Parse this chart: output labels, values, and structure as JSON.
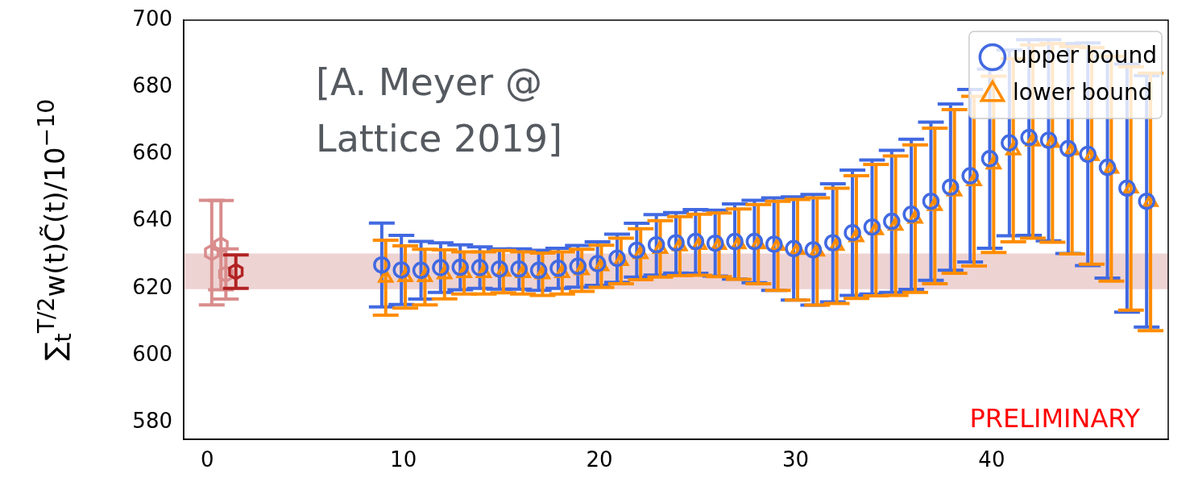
{
  "chart_data": {
    "type": "scatter",
    "ylabel": "∑$_{t}$$^{T/2}$w(t)C̃(t)/10$^{−10}$",
    "annotations": [
      "[A. Meyer @ Lattice 2019]",
      "PRELIMINARY"
    ],
    "xlim": [
      -1.2,
      49
    ],
    "xticks": [
      0,
      10,
      20,
      30,
      40
    ],
    "ylim": [
      575,
      700
    ],
    "yticks": [
      580,
      600,
      620,
      640,
      660,
      680,
      700
    ],
    "grid": false,
    "legend": "top right",
    "bands": [
      {
        "axis": "y",
        "from": 619.8,
        "to": 630.4,
        "color": "#eed3d3"
      }
    ],
    "series": [
      {
        "color": "#d98c8c",
        "x": [
          0.23,
          0.7,
          0.95
        ],
        "values": [
          630.7,
          632.9,
          624.3
        ],
        "errors": [
          15.6,
          13.3,
          7.5
        ]
      },
      {
        "color": "#b22222",
        "x": [
          1.46
        ],
        "values": [
          625
        ],
        "errors": [
          5
        ]
      },
      {
        "name": "upper bound",
        "color": "#4169e1",
        "marker": "circle",
        "x": [
          8.9,
          9.9,
          10.9,
          11.9,
          12.9,
          13.9,
          14.9,
          15.9,
          16.9,
          17.9,
          18.9,
          19.9,
          20.9,
          21.9,
          22.9,
          23.9,
          24.9,
          25.9,
          26.9,
          27.9,
          28.9,
          29.9,
          30.9,
          31.9,
          32.9,
          33.9,
          34.9,
          35.9,
          36.9,
          37.9,
          38.9,
          39.9,
          40.9,
          41.9,
          42.9,
          43.9,
          44.9,
          45.9,
          46.9,
          47.9
        ],
        "values": [
          627,
          625.5,
          625.4,
          626.2,
          626.3,
          626.2,
          625.8,
          625.8,
          625.4,
          626,
          626.6,
          627.4,
          629,
          631.4,
          633,
          633.6,
          634,
          633.5,
          634,
          634,
          633.2,
          631.9,
          631.5,
          633.6,
          636.6,
          638.3,
          640,
          642.1,
          646,
          650.2,
          653.6,
          658.7,
          663.4,
          665,
          664.2,
          661.7,
          660,
          656.1,
          649.9,
          646
        ],
        "errors": [
          12.5,
          10.3,
          8.6,
          7.4,
          6.7,
          6.2,
          6,
          6,
          6,
          6,
          6.2,
          6.5,
          7.2,
          8,
          9,
          9,
          9.5,
          9.8,
          11.2,
          12.3,
          13.8,
          15.4,
          16.5,
          17.6,
          18.7,
          20,
          21.2,
          22.4,
          23.6,
          24.8,
          25.7,
          26.7,
          27.7,
          29.2,
          30,
          31.3,
          33.2,
          33,
          37,
          37.5
        ]
      },
      {
        "name": "lower bound",
        "color": "#ff8c00",
        "marker": "triangle",
        "x": [
          9.1,
          10.1,
          11.1,
          12.1,
          13.1,
          14.1,
          15.1,
          16.1,
          17.1,
          18.1,
          19.1,
          20.1,
          21.1,
          22.1,
          23.1,
          24.1,
          25.1,
          26.1,
          27.1,
          28.1,
          29.1,
          30.1,
          31.1,
          32.1,
          33.1,
          34.1,
          35.1,
          36.1,
          37.1,
          38.1,
          39.1,
          40.1,
          41.1,
          42.1,
          43.1,
          44.1,
          45.1,
          46.1,
          47.1,
          48.1
        ],
        "values": [
          623.2,
          623.4,
          623.4,
          624.2,
          624.6,
          624.6,
          625,
          624.6,
          624.2,
          624.6,
          625.4,
          626.6,
          628.2,
          630.2,
          631.8,
          632.6,
          633,
          633,
          633.2,
          633.2,
          632.7,
          631.5,
          631,
          632.7,
          635.3,
          637.4,
          638.7,
          640.8,
          644.6,
          648.9,
          652,
          657,
          661.2,
          663.8,
          663.4,
          661.2,
          659.5,
          655.7,
          649.8,
          645.8
        ],
        "errors": [
          11.2,
          9.3,
          8.3,
          7.3,
          6.3,
          6.3,
          6.3,
          6.3,
          6.3,
          6.3,
          6.3,
          6.3,
          6.8,
          7.6,
          8.4,
          8.8,
          9.1,
          9.5,
          10.5,
          11.8,
          13.3,
          15,
          16,
          17.2,
          18.3,
          19.6,
          20.8,
          22,
          23.2,
          24.4,
          25.3,
          26.3,
          27.3,
          28.8,
          29.6,
          30.9,
          32.3,
          33.5,
          36.3,
          38.4
        ]
      }
    ]
  }
}
